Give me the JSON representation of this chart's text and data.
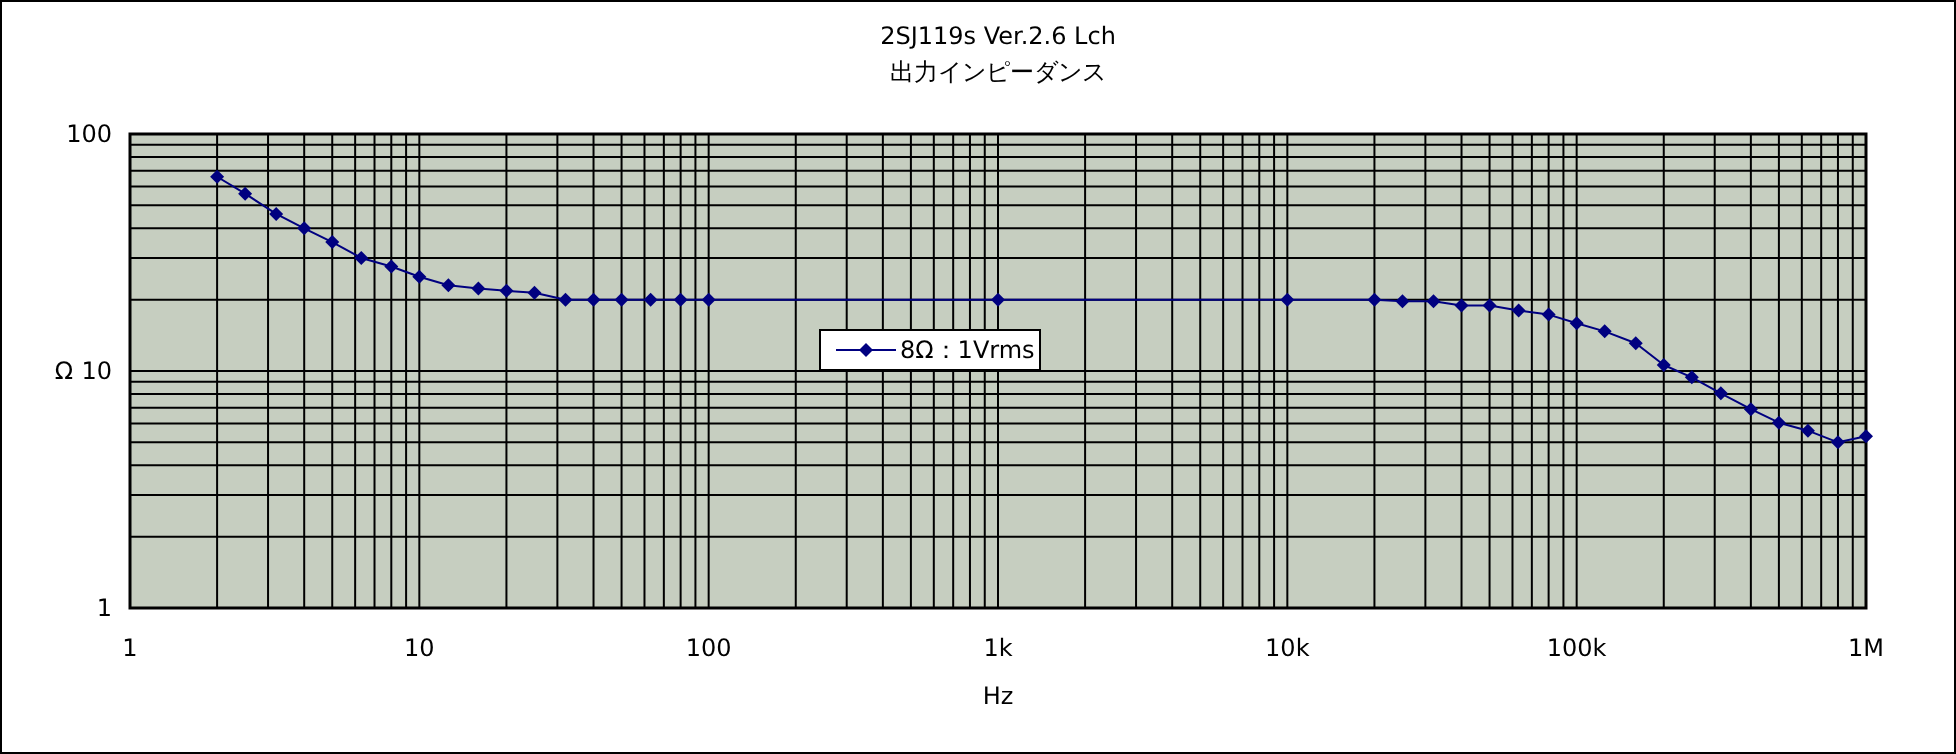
{
  "chart_data": {
    "type": "line",
    "title": "2SJ119s Ver.2.6  Lch",
    "subtitle": "出力インピーダンス",
    "xlabel": "Hz",
    "ylabel": "Ω",
    "log": "xy",
    "xlim": [
      1,
      1000000
    ],
    "ylim": [
      1,
      100
    ],
    "xticks": [
      1,
      10,
      100,
      {
        "value": 1000,
        "label": "1k"
      },
      {
        "value": 10000,
        "label": "10k"
      },
      {
        "value": 100000,
        "label": "100k"
      },
      {
        "value": 1000000,
        "label": "1M"
      }
    ],
    "yticks": [
      1,
      10,
      100
    ],
    "grid": true,
    "legend": "left",
    "marker": "diamond",
    "line_style": "solid",
    "x": [
      2,
      2.5,
      3.2,
      4,
      5,
      6.3,
      8,
      10,
      12.6,
      16,
      20,
      25,
      32,
      40,
      50,
      63,
      80,
      100,
      1000,
      10000,
      20000,
      25000,
      32000,
      40000,
      50000,
      63000,
      80000,
      100000,
      125000,
      160000,
      200000,
      250000,
      315000,
      400000,
      500000,
      630000,
      800000,
      1000000
    ],
    "series": [
      {
        "name": "8Ω：1Vrms",
        "color": "#000080",
        "values": [
          66,
          56,
          46,
          40,
          35,
          30,
          27.6,
          25,
          23,
          22.3,
          21.8,
          21.4,
          20,
          20,
          20,
          20,
          20,
          20,
          20,
          20,
          20,
          19.7,
          19.7,
          18.9,
          18.9,
          18,
          17.3,
          15.9,
          14.7,
          13.1,
          10.6,
          9.4,
          8.05,
          6.9,
          6.05,
          5.6,
          5.0,
          5.3
        ]
      }
    ]
  }
}
